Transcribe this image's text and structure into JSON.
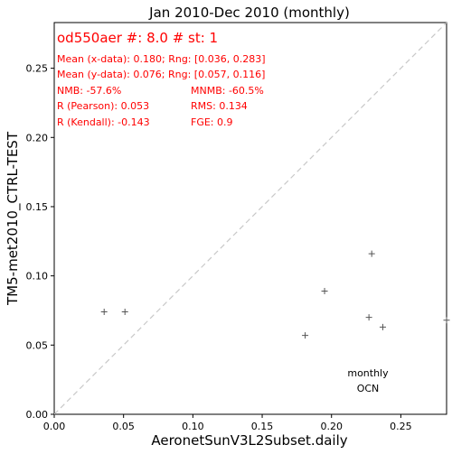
{
  "chart_data": {
    "type": "scatter",
    "title": "Jan 2010-Dec 2010 (monthly)",
    "xlabel": "AeronetSunV3L2Subset.daily",
    "ylabel": "TM5-met2010_CTRL-TEST",
    "xlim": [
      0.0,
      0.283
    ],
    "ylim": [
      0.0,
      0.283
    ],
    "xticks": [
      "0.00",
      "0.05",
      "0.10",
      "0.15",
      "0.20",
      "0.25"
    ],
    "yticks": [
      "0.00",
      "0.05",
      "0.10",
      "0.15",
      "0.20",
      "0.25"
    ],
    "xtick_values": [
      0.0,
      0.05,
      0.1,
      0.15,
      0.2,
      0.25
    ],
    "ytick_values": [
      0.0,
      0.05,
      0.1,
      0.15,
      0.2,
      0.25
    ],
    "grid": false,
    "marker": "+",
    "marker_color": "#555555",
    "diagonal_color": "#c8c8c8",
    "stats_color": "#ff0000",
    "points": [
      {
        "x": 0.036,
        "y": 0.074
      },
      {
        "x": 0.051,
        "y": 0.074
      },
      {
        "x": 0.181,
        "y": 0.057
      },
      {
        "x": 0.195,
        "y": 0.089
      },
      {
        "x": 0.227,
        "y": 0.07
      },
      {
        "x": 0.229,
        "y": 0.116
      },
      {
        "x": 0.237,
        "y": 0.063
      },
      {
        "x": 0.283,
        "y": 0.068
      }
    ],
    "stats": {
      "header": "od550aer #: 8.0 # st: 1",
      "mean_x": "Mean (x-data): 0.180; Rng: [0.036, 0.283]",
      "mean_y": "Mean (y-data): 0.076; Rng: [0.057, 0.116]",
      "nmb": "NMB: -57.6%",
      "mnmb": "MNMB: -60.5%",
      "pearson": "R (Pearson): 0.053",
      "rms": "RMS: 0.134",
      "kendall": "R (Kendall): -0.143",
      "fge": "FGE: 0.9"
    },
    "annotations": [
      "monthly",
      "OCN"
    ]
  }
}
